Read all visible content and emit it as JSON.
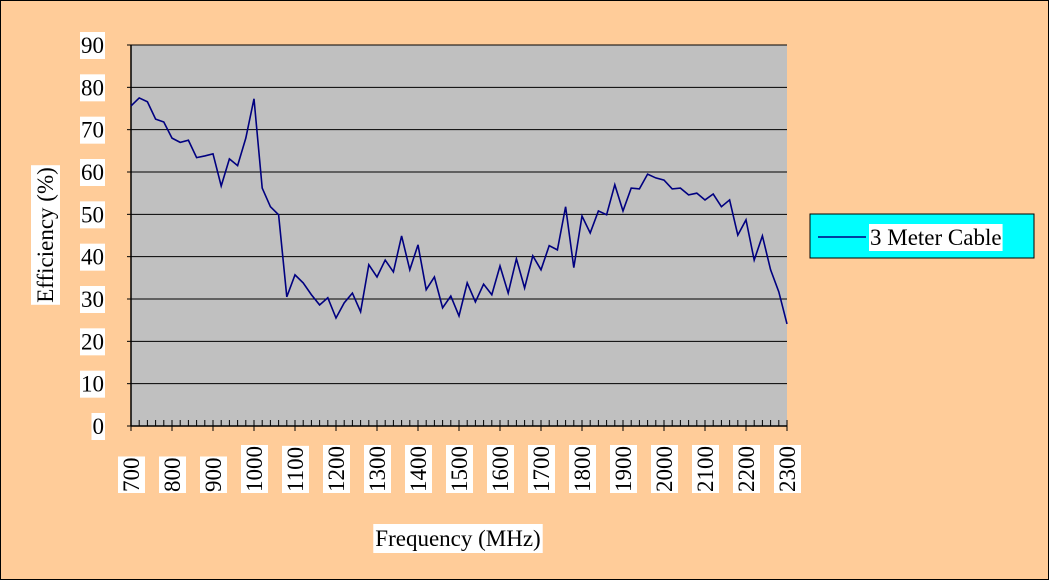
{
  "chart_data": {
    "type": "line",
    "x_label": "Frequency (MHz)",
    "y_label": "Efficiency (%)",
    "x": [
      700,
      720,
      740,
      760,
      780,
      800,
      820,
      840,
      860,
      880,
      900,
      920,
      940,
      960,
      980,
      1000,
      1020,
      1040,
      1060,
      1080,
      1100,
      1120,
      1140,
      1160,
      1180,
      1200,
      1220,
      1240,
      1260,
      1280,
      1300,
      1320,
      1340,
      1360,
      1380,
      1400,
      1420,
      1440,
      1460,
      1480,
      1500,
      1520,
      1540,
      1560,
      1580,
      1600,
      1620,
      1640,
      1660,
      1680,
      1700,
      1720,
      1740,
      1760,
      1780,
      1800,
      1820,
      1840,
      1860,
      1880,
      1900,
      1920,
      1940,
      1960,
      1980,
      2000,
      2020,
      2040,
      2060,
      2080,
      2100,
      2120,
      2140,
      2160,
      2180,
      2200,
      2220,
      2240,
      2260,
      2280,
      2300
    ],
    "series": [
      {
        "name": "3 Meter Cable",
        "color": "#000080",
        "values": [
          75.6,
          77.5,
          76.6,
          72.5,
          71.8,
          68,
          67,
          67.5,
          63.4,
          63.8,
          64.3,
          56.7,
          63.1,
          61.5,
          68,
          77.3,
          56.2,
          51.8,
          49.9,
          30.5,
          35.7,
          33.8,
          31,
          28.6,
          30.3,
          25.5,
          29.1,
          31.4,
          27,
          38.1,
          35.2,
          39.2,
          36.4,
          44.9,
          36.9,
          42.8,
          32.2,
          35.2,
          27.9,
          30.7,
          26,
          33.8,
          29.3,
          33.5,
          31,
          37.8,
          31.4,
          39.5,
          32.6,
          40.2,
          36.9,
          42.6,
          41.6,
          51.8,
          37.4,
          49.6,
          45.6,
          50.8,
          49.9,
          57,
          50.8,
          56.2,
          56,
          59.5,
          58.6,
          58.1,
          56,
          56.2,
          54.6,
          55,
          53.4,
          54.8,
          51.8,
          53.4,
          45.1,
          48.7,
          39.2,
          44.9,
          36.9,
          31.7,
          24.1
        ]
      }
    ],
    "xlim": [
      700,
      2300
    ],
    "xticks": [
      700,
      800,
      900,
      1000,
      1100,
      1200,
      1300,
      1400,
      1500,
      1600,
      1700,
      1800,
      1900,
      2000,
      2100,
      2200,
      2300
    ],
    "ylim": [
      0,
      90
    ],
    "yticks": [
      0,
      10,
      20,
      30,
      40,
      50,
      60,
      70,
      80,
      90
    ],
    "grid": true,
    "legend": "right"
  }
}
